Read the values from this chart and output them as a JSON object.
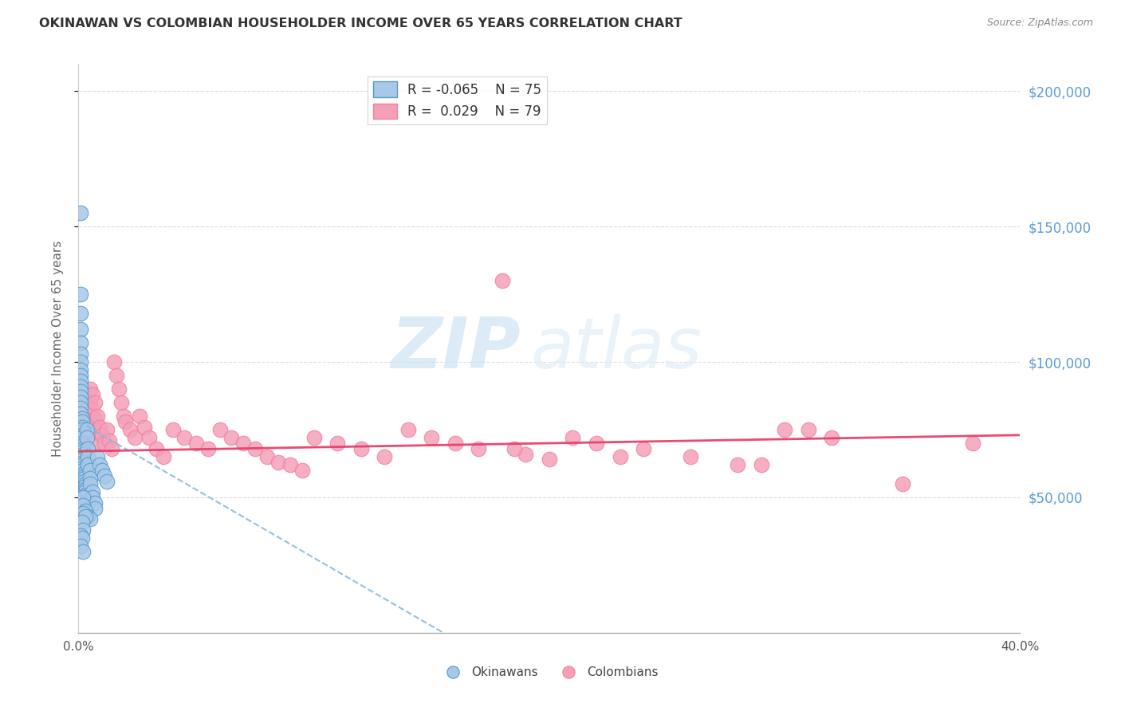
{
  "title": "OKINAWAN VS COLOMBIAN HOUSEHOLDER INCOME OVER 65 YEARS CORRELATION CHART",
  "source": "Source: ZipAtlas.com",
  "ylabel": "Householder Income Over 65 years",
  "xlim": [
    0.0,
    0.4
  ],
  "ylim": [
    0,
    210000
  ],
  "yticks": [
    50000,
    100000,
    150000,
    200000
  ],
  "ytick_labels": [
    "$50,000",
    "$100,000",
    "$150,000",
    "$200,000"
  ],
  "legend_r_okinawan": "R = -0.065",
  "legend_n_okinawan": "N = 75",
  "legend_r_colombian": "R =  0.029",
  "legend_n_colombian": "N = 79",
  "color_okinawan": "#a8c8e8",
  "color_colombian": "#f4a0b8",
  "color_okinawan_edge": "#5599cc",
  "color_colombian_edge": "#f080a0",
  "color_okinawan_trend": "#88bbdd",
  "color_colombian_trend": "#e8406a",
  "watermark_zip": "ZIP",
  "watermark_atlas": "atlas",
  "background_color": "#ffffff",
  "grid_color": "#dddddd",
  "title_color": "#333333",
  "right_tick_color": "#5b9bd5",
  "okinawan_x": [
    0.001,
    0.001,
    0.001,
    0.001,
    0.001,
    0.001,
    0.001,
    0.001,
    0.001,
    0.001,
    0.001,
    0.001,
    0.001,
    0.001,
    0.001,
    0.001,
    0.0015,
    0.0015,
    0.0015,
    0.0015,
    0.0015,
    0.0015,
    0.0015,
    0.002,
    0.002,
    0.002,
    0.002,
    0.002,
    0.002,
    0.002,
    0.002,
    0.002,
    0.002,
    0.0025,
    0.0025,
    0.0025,
    0.0025,
    0.003,
    0.003,
    0.003,
    0.003,
    0.003,
    0.003,
    0.0035,
    0.0035,
    0.004,
    0.004,
    0.004,
    0.005,
    0.005,
    0.005,
    0.006,
    0.006,
    0.007,
    0.007,
    0.008,
    0.009,
    0.01,
    0.011,
    0.012,
    0.001,
    0.001,
    0.002,
    0.002,
    0.003,
    0.004,
    0.005,
    0.002,
    0.003,
    0.0015,
    0.002,
    0.001,
    0.0015,
    0.001,
    0.002
  ],
  "okinawan_y": [
    155000,
    125000,
    118000,
    112000,
    107000,
    103000,
    100000,
    97000,
    95000,
    93000,
    91000,
    89000,
    87000,
    85000,
    83000,
    81000,
    79000,
    78000,
    76000,
    75000,
    73000,
    72000,
    70000,
    69000,
    68000,
    67000,
    66000,
    65000,
    64000,
    63000,
    62000,
    61000,
    60000,
    59000,
    58000,
    57000,
    56000,
    55000,
    54000,
    53000,
    52000,
    51000,
    50000,
    75000,
    72000,
    68000,
    65000,
    62000,
    60000,
    57000,
    55000,
    52000,
    50000,
    48000,
    46000,
    65000,
    62000,
    60000,
    58000,
    56000,
    48000,
    45000,
    50000,
    47000,
    45000,
    43000,
    42000,
    44000,
    43000,
    41000,
    38000,
    36000,
    35000,
    32000,
    30000
  ],
  "colombian_x": [
    0.001,
    0.001,
    0.001,
    0.002,
    0.002,
    0.002,
    0.002,
    0.003,
    0.003,
    0.003,
    0.003,
    0.004,
    0.004,
    0.004,
    0.005,
    0.005,
    0.005,
    0.006,
    0.006,
    0.007,
    0.007,
    0.008,
    0.008,
    0.009,
    0.009,
    0.01,
    0.011,
    0.012,
    0.013,
    0.014,
    0.015,
    0.016,
    0.017,
    0.018,
    0.019,
    0.02,
    0.022,
    0.024,
    0.026,
    0.028,
    0.03,
    0.033,
    0.036,
    0.04,
    0.045,
    0.05,
    0.055,
    0.06,
    0.065,
    0.07,
    0.075,
    0.08,
    0.085,
    0.09,
    0.095,
    0.1,
    0.11,
    0.12,
    0.13,
    0.14,
    0.15,
    0.16,
    0.17,
    0.18,
    0.19,
    0.2,
    0.21,
    0.22,
    0.24,
    0.26,
    0.28,
    0.3,
    0.32,
    0.35,
    0.38,
    0.185,
    0.23,
    0.29,
    0.31
  ],
  "colombian_y": [
    72000,
    68000,
    65000,
    75000,
    70000,
    66000,
    63000,
    80000,
    76000,
    73000,
    69000,
    85000,
    80000,
    76000,
    90000,
    85000,
    78000,
    88000,
    82000,
    85000,
    79000,
    80000,
    74000,
    76000,
    70000,
    73000,
    70000,
    75000,
    71000,
    68000,
    100000,
    95000,
    90000,
    85000,
    80000,
    78000,
    75000,
    72000,
    80000,
    76000,
    72000,
    68000,
    65000,
    75000,
    72000,
    70000,
    68000,
    75000,
    72000,
    70000,
    68000,
    65000,
    63000,
    62000,
    60000,
    72000,
    70000,
    68000,
    65000,
    75000,
    72000,
    70000,
    68000,
    130000,
    66000,
    64000,
    72000,
    70000,
    68000,
    65000,
    62000,
    75000,
    72000,
    55000,
    70000,
    68000,
    65000,
    62000,
    75000
  ]
}
